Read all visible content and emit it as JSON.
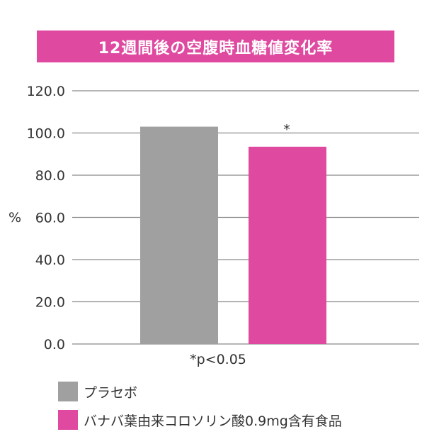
{
  "chart_data": {
    "type": "bar",
    "title": "12週間後の空腹時血糖値変化率",
    "ylabel": "%",
    "ylim": [
      0,
      120
    ],
    "yticks": [
      "0.0",
      "20.0",
      "40.0",
      "60.0",
      "80.0",
      "100.0",
      "120.0"
    ],
    "grid": true,
    "categories": [
      "プラセボ",
      "バナバ葉由来コロソリン酸0.9mg含有食品"
    ],
    "values": [
      103.0,
      93.5
    ],
    "colors": [
      "#a0a0a0",
      "#df4aa0"
    ],
    "significance_marker": "*",
    "footnote": "*p<0.05",
    "legend": [
      {
        "label": "プラセボ",
        "color": "#a0a0a0"
      },
      {
        "label": "バナバ葉由来コロソリン酸0.9mg含有食品",
        "color": "#df4aa0"
      }
    ],
    "legend_position": "bottom-left"
  }
}
